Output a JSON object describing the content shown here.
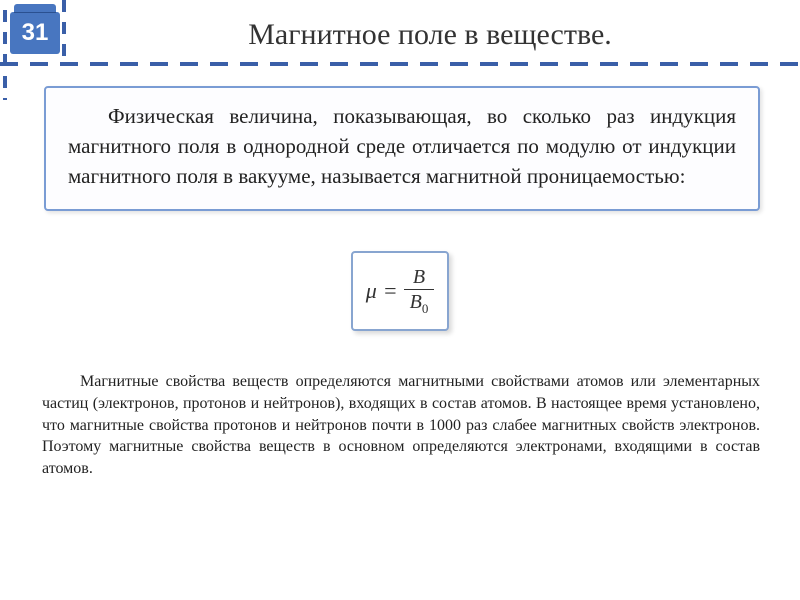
{
  "badge": "31",
  "title": "Магнитное поле в веществе.",
  "definition": "Физическая величина, показывающая, во сколько раз индукция магнитного поля в однородной среде отличается по модулю от индукции магнитного поля в вакууме, называется магнитной проницаемостью:",
  "formula": {
    "lhs": "μ",
    "eq": "=",
    "num": "B",
    "den_base": "B",
    "den_sub": "0"
  },
  "body": "Магнитные свойства веществ определяются магнитными свойствами атомов или элементарных частиц (электронов, протонов и нейтронов), входящих в состав атомов. В настоящее время установлено, что магнитные свойства протонов и нейтронов почти в 1000 раз слабее магнитных свойств электронов. Поэтому магнитные свойства веществ в основном определяются электронами, входящими в состав атомов.",
  "colors": {
    "accent": "#4876c0",
    "dash": "#3a5fa8",
    "box_border": "#7a9cd4"
  }
}
